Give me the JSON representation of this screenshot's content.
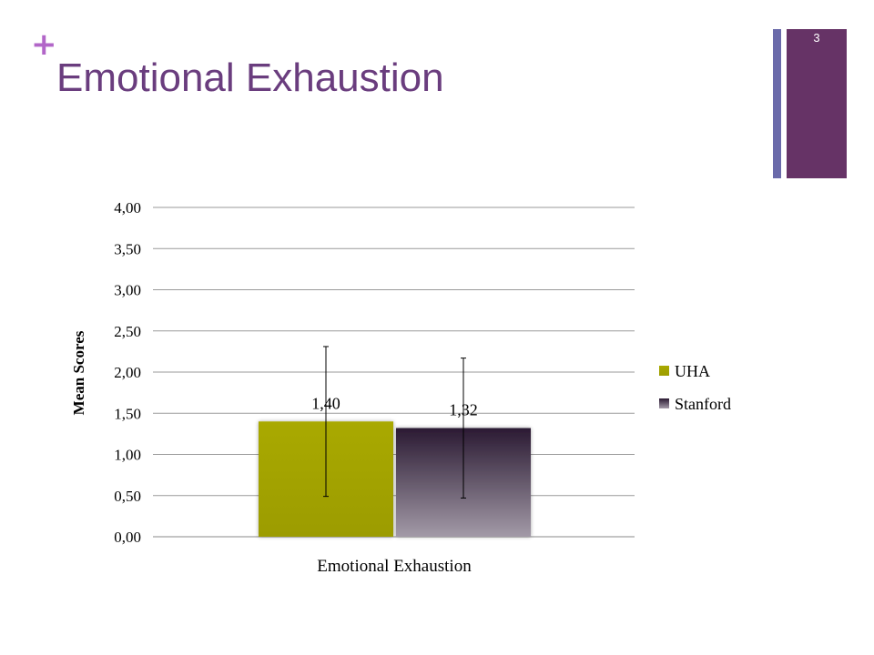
{
  "slide": {
    "title": "Emotional Exhaustion",
    "plus_symbol": "+",
    "page_number": "3"
  },
  "colors": {
    "title": "#6a3d7e",
    "plus": "#b266c8",
    "accent_bar": "#663366",
    "accent_thin_bar": "#6a6aaa",
    "uha": "#a3a300",
    "stanford_top": "#2b1a33",
    "stanford_bottom": "#a39aa8"
  },
  "chart_data": {
    "type": "bar",
    "categories": [
      "Emotional Exhaustion"
    ],
    "series": [
      {
        "name": "UHA",
        "values": [
          1.4
        ],
        "label": "1,40",
        "error": [
          0.91
        ]
      },
      {
        "name": "Stanford",
        "values": [
          1.32
        ],
        "label": "1,32",
        "error": [
          0.85
        ]
      }
    ],
    "ylabel": "Mean Scores",
    "xlabel": "",
    "ylim": [
      0,
      4
    ],
    "yticks": [
      "0,00",
      "0,50",
      "1,00",
      "1,50",
      "2,00",
      "2,50",
      "3,00",
      "3,50",
      "4,00"
    ],
    "grid": true,
    "legend": "right"
  }
}
